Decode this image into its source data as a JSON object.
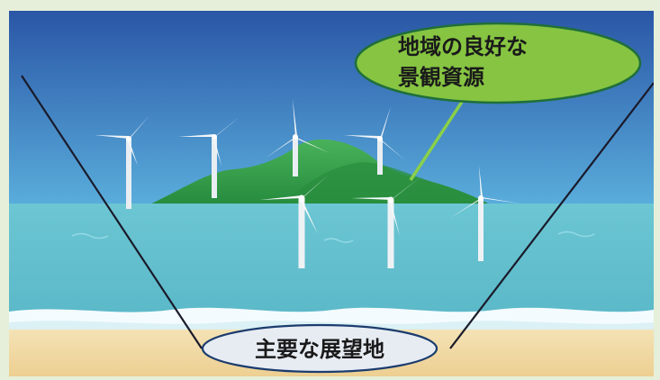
{
  "callout": {
    "line1": "地域の良好な",
    "line2": "景観資源"
  },
  "viewpoint": {
    "label": "主要な展望地"
  },
  "colors": {
    "sky_top": "#2f5fae",
    "sky_bottom": "#5aa7d8",
    "sea": "#67c2cf",
    "sand": "#f1d9a6",
    "island": "#3aa04a",
    "callout_fill": "#86c442",
    "callout_stroke": "#1f6f3a",
    "viewpoint_fill": "#e7ecf3"
  }
}
